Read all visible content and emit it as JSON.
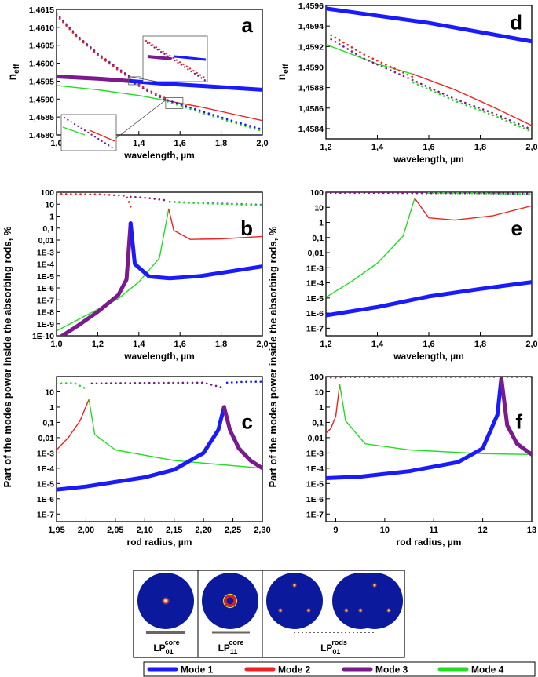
{
  "figure": {
    "shared_ylabel": "Part of the modes power inside the absorbing rods, %",
    "neff_label_main": "n",
    "neff_label_sub": "eff"
  },
  "legend": {
    "entries": [
      {
        "label": "Mode 1",
        "color": "#1a1aff"
      },
      {
        "label": "Mode 2",
        "color": "#ee2222"
      },
      {
        "label": "Mode 3",
        "color": "#7a1a8c"
      },
      {
        "label": "Mode 4",
        "color": "#22dd22"
      }
    ]
  },
  "mode_profiles": {
    "labels": [
      {
        "main": "LP",
        "sub": "01",
        "sup": "core"
      },
      {
        "main": "LP",
        "sub": "11",
        "sup": "core"
      },
      {
        "main": "LP",
        "sub": "01",
        "sup": "rods"
      }
    ],
    "circle_color": "#0b1a9c",
    "spot_color": "#f0d020"
  },
  "chart_data": [
    {
      "id": "a",
      "type": "line",
      "yscale": "linear",
      "xlabel": "wavelength, µm",
      "ylabel": "n_eff",
      "xlim": [
        1.0,
        2.0
      ],
      "ylim": [
        1.458,
        1.4615
      ],
      "xticks": [
        1.0,
        1.2,
        1.4,
        1.6,
        1.8,
        2.0
      ],
      "xtick_labels": [
        "1,0",
        "1,2",
        "1,4",
        "1,6",
        "1,8",
        "2,0"
      ],
      "yticks": [
        1.458,
        1.4585,
        1.459,
        1.4595,
        1.46,
        1.4605,
        1.461,
        1.4615
      ],
      "ytick_labels": [
        "1,4580",
        "1,4585",
        "1,4590",
        "1,4595",
        "1,4600",
        "1,4605",
        "1,4610",
        "1,4615"
      ],
      "series": [
        {
          "name": "Mode 3",
          "style": "thick",
          "x": [
            1.0,
            1.2,
            1.36
          ],
          "y": [
            1.45963,
            1.45957,
            1.4595
          ]
        },
        {
          "name": "Mode 1",
          "style": "thick",
          "x": [
            1.36,
            1.5,
            1.7,
            2.0
          ],
          "y": [
            1.4595,
            1.45944,
            1.45937,
            1.45926
          ]
        },
        {
          "name": "Mode 4",
          "style": "thin",
          "x": [
            1.0,
            1.2,
            1.4,
            1.54
          ],
          "y": [
            1.45938,
            1.45926,
            1.4591,
            1.45895
          ]
        },
        {
          "name": "Mode 2",
          "style": "thin",
          "x": [
            1.54,
            1.7,
            1.85,
            2.0
          ],
          "y": [
            1.45895,
            1.45878,
            1.45859,
            1.4584
          ]
        },
        {
          "name": "Mode 2",
          "style": "dotted",
          "x": [
            1.0,
            1.1,
            1.2,
            1.3,
            1.36
          ],
          "y": [
            1.46134,
            1.46073,
            1.46023,
            1.45981,
            1.45957
          ]
        },
        {
          "name": "Mode 3",
          "style": "dotted",
          "x": [
            1.0,
            1.1,
            1.2,
            1.3,
            1.36
          ],
          "y": [
            1.46138,
            1.46077,
            1.46027,
            1.45985,
            1.45961
          ]
        },
        {
          "name": "Mode 3",
          "style": "dotted",
          "x": [
            1.36,
            1.45,
            1.54
          ],
          "y": [
            1.4595,
            1.4592,
            1.45895
          ]
        },
        {
          "name": "Mode 2",
          "style": "dotted",
          "x": [
            1.36,
            1.45,
            1.54
          ],
          "y": [
            1.45954,
            1.45924,
            1.45899
          ]
        },
        {
          "name": "Mode 4",
          "style": "dotted",
          "x": [
            1.54,
            1.7,
            1.85,
            2.0
          ],
          "y": [
            1.45893,
            1.45863,
            1.45836,
            1.45811
          ]
        },
        {
          "name": "Mode 1",
          "style": "dotted",
          "x": [
            1.54,
            1.7,
            1.85,
            2.0
          ],
          "y": [
            1.45897,
            1.45867,
            1.4584,
            1.45815
          ]
        }
      ]
    },
    {
      "id": "b",
      "type": "line",
      "yscale": "log",
      "xlabel": "wavelength, µm",
      "ylabel": "",
      "xlim": [
        1.0,
        2.0
      ],
      "ylim_exp": [
        -10,
        2
      ],
      "xticks": [
        1.0,
        1.2,
        1.4,
        1.6,
        1.8,
        2.0
      ],
      "xtick_labels": [
        "1,0",
        "1,2",
        "1,4",
        "1,6",
        "1,8",
        "2,0"
      ],
      "yticks_exp": [
        -10,
        -9,
        -8,
        -7,
        -6,
        -5,
        -4,
        -3,
        -2,
        -1,
        0,
        1,
        2
      ],
      "ytick_labels": [
        "1E-10",
        "1E-9",
        "1E-8",
        "1E-7",
        "1E-6",
        "1E-5",
        "1E-4",
        "1E-3",
        "0,01",
        "0,1",
        "1",
        "10",
        "100"
      ],
      "series": [
        {
          "name": "Mode 3",
          "style": "thick",
          "x": [
            1.0,
            1.1,
            1.2,
            1.3,
            1.34,
            1.36
          ],
          "log10": [
            -10.3,
            -9.2,
            -8.0,
            -6.6,
            -5.3,
            -0.6
          ]
        },
        {
          "name": "Mode 1",
          "style": "thick",
          "x": [
            1.36,
            1.38,
            1.45,
            1.55,
            1.7,
            2.0
          ],
          "log10": [
            -0.6,
            -4.0,
            -5.05,
            -5.2,
            -5.0,
            -4.2
          ]
        },
        {
          "name": "Mode 4",
          "style": "thin",
          "x": [
            1.0,
            1.2,
            1.3,
            1.4,
            1.5,
            1.545
          ],
          "log10": [
            -9.6,
            -7.8,
            -6.9,
            -5.5,
            -3.5,
            0.6
          ]
        },
        {
          "name": "Mode 2",
          "style": "thin",
          "x": [
            1.545,
            1.57,
            1.65,
            1.8,
            2.0
          ],
          "log10": [
            0.6,
            -1.2,
            -1.95,
            -1.9,
            -1.7
          ]
        },
        {
          "name": "Mode 2",
          "style": "dotted",
          "x": [
            1.0,
            1.2,
            1.34,
            1.36
          ],
          "log10": [
            1.85,
            1.82,
            1.7,
            0.8
          ]
        },
        {
          "name": "Mode 3",
          "style": "dotted",
          "x": [
            1.36,
            1.45,
            1.54
          ],
          "log10": [
            1.62,
            1.5,
            1.3
          ]
        },
        {
          "name": "Mode 1",
          "style": "dotted",
          "x": [
            1.55,
            1.7,
            2.0
          ],
          "log10": [
            1.2,
            1.1,
            0.95
          ]
        },
        {
          "name": "Mode 4",
          "style": "dotted",
          "x": [
            1.55,
            1.7,
            2.0
          ],
          "log10": [
            1.18,
            1.08,
            0.92
          ]
        }
      ]
    },
    {
      "id": "c",
      "type": "line",
      "yscale": "log",
      "xlabel": "rod radius, µm",
      "ylabel": "",
      "xlim": [
        1.95,
        2.3
      ],
      "ylim_exp": [
        -7.5,
        2
      ],
      "xticks": [
        1.95,
        2.0,
        2.05,
        2.1,
        2.15,
        2.2,
        2.25,
        2.3
      ],
      "xtick_labels": [
        "1,95",
        "2,00",
        "2,05",
        "2,10",
        "2,15",
        "2,20",
        "2,25",
        "2,30"
      ],
      "yticks_exp": [
        -7,
        -6,
        -5,
        -4,
        -3,
        -2,
        -1,
        0,
        1
      ],
      "ytick_labels": [
        "1E-7",
        "1E-6",
        "1E-5",
        "1E-4",
        "1E-3",
        "0,01",
        "0,1",
        "1",
        "10"
      ],
      "series": [
        {
          "name": "Mode 1",
          "style": "thick",
          "x": [
            1.95,
            2.0,
            2.1,
            2.15,
            2.2,
            2.225,
            2.235
          ],
          "log10": [
            -5.4,
            -5.2,
            -4.6,
            -4.1,
            -3.0,
            -1.5,
            0.0
          ]
        },
        {
          "name": "Mode 3",
          "style": "thick",
          "x": [
            2.235,
            2.245,
            2.26,
            2.28,
            2.3
          ],
          "log10": [
            0.0,
            -1.5,
            -2.7,
            -3.5,
            -4.0
          ]
        },
        {
          "name": "Mode 2",
          "style": "thin",
          "x": [
            1.95,
            1.97,
            1.99,
            2.005
          ],
          "log10": [
            -2.8,
            -2.0,
            -0.9,
            0.5
          ]
        },
        {
          "name": "Mode 4",
          "style": "thin",
          "x": [
            2.005,
            2.015,
            2.05,
            2.15,
            2.3
          ],
          "log10": [
            0.5,
            -1.8,
            -2.8,
            -3.5,
            -4.0
          ]
        },
        {
          "name": "Mode 4",
          "style": "dotted",
          "x": [
            1.95,
            1.98,
            2.0
          ],
          "log10": [
            1.55,
            1.58,
            1.2
          ]
        },
        {
          "name": "Mode 3",
          "style": "dotted",
          "x": [
            2.01,
            2.1,
            2.2,
            2.23
          ],
          "log10": [
            1.55,
            1.58,
            1.6,
            1.3
          ]
        },
        {
          "name": "Mode 1",
          "style": "dotted",
          "x": [
            2.24,
            2.27,
            2.3
          ],
          "log10": [
            1.6,
            1.65,
            1.66
          ]
        }
      ]
    },
    {
      "id": "d",
      "type": "line",
      "yscale": "linear",
      "xlabel": "wavelength, µm",
      "ylabel": "n_eff",
      "xlim": [
        1.2,
        2.0
      ],
      "ylim": [
        1.4583,
        1.4596
      ],
      "xticks": [
        1.2,
        1.4,
        1.6,
        1.8,
        2.0
      ],
      "xtick_labels": [
        "1,2",
        "1,4",
        "1,6",
        "1,8",
        "2,0"
      ],
      "yticks": [
        1.4584,
        1.4586,
        1.4588,
        1.459,
        1.4592,
        1.4594,
        1.4596
      ],
      "ytick_labels": [
        "1,4584",
        "1,4586",
        "1,4588",
        "1,4590",
        "1,4592",
        "1,4594",
        "1,4596"
      ],
      "series": [
        {
          "name": "Mode 1",
          "style": "thick",
          "x": [
            1.2,
            1.6,
            2.0
          ],
          "y": [
            1.45957,
            1.45943,
            1.45925
          ]
        },
        {
          "name": "Mode 4",
          "style": "thin",
          "x": [
            1.2,
            1.4,
            1.54
          ],
          "y": [
            1.45922,
            1.45903,
            1.45893
          ]
        },
        {
          "name": "Mode 2",
          "style": "thin",
          "x": [
            1.54,
            1.7,
            1.85,
            2.0
          ],
          "y": [
            1.45893,
            1.45878,
            1.45861,
            1.45843
          ]
        },
        {
          "name": "Mode 2",
          "style": "dotted",
          "x": [
            1.22,
            1.35,
            1.54
          ],
          "y": [
            1.45931,
            1.45912,
            1.4589
          ]
        },
        {
          "name": "Mode 3",
          "style": "dotted",
          "x": [
            1.22,
            1.35,
            1.54,
            1.7,
            1.85,
            2.0
          ],
          "y": [
            1.45927,
            1.45908,
            1.45887,
            1.45869,
            1.45855,
            1.45839
          ]
        },
        {
          "name": "Mode 4",
          "style": "dotted",
          "x": [
            1.54,
            1.7,
            1.85,
            2.0
          ],
          "y": [
            1.45885,
            1.45867,
            1.45853,
            1.45837
          ]
        }
      ]
    },
    {
      "id": "e",
      "type": "line",
      "yscale": "log",
      "xlabel": "wavelength, µm",
      "ylabel": "",
      "xlim": [
        1.2,
        2.0
      ],
      "ylim_exp": [
        -7.5,
        2
      ],
      "xticks": [
        1.2,
        1.4,
        1.6,
        1.8,
        2.0
      ],
      "xtick_labels": [
        "1,2",
        "1,4",
        "1,6",
        "1,8",
        "2,0"
      ],
      "yticks_exp": [
        -7,
        -6,
        -5,
        -4,
        -3,
        -2,
        -1,
        0,
        1,
        2
      ],
      "ytick_labels": [
        "1E-7",
        "1E-6",
        "1E-5",
        "1E-4",
        "1E-3",
        "0,01",
        "0,1",
        "1",
        "10",
        "100"
      ],
      "series": [
        {
          "name": "Mode 1",
          "style": "thick",
          "x": [
            1.2,
            1.4,
            1.6,
            1.8,
            2.0
          ],
          "log10": [
            -6.15,
            -5.6,
            -4.9,
            -4.4,
            -3.95
          ]
        },
        {
          "name": "Mode 4",
          "style": "thin",
          "x": [
            1.2,
            1.3,
            1.4,
            1.5,
            1.545
          ],
          "log10": [
            -4.95,
            -3.9,
            -2.7,
            -0.9,
            1.6
          ]
        },
        {
          "name": "Mode 2",
          "style": "thin",
          "x": [
            1.545,
            1.6,
            1.7,
            1.85,
            2.0
          ],
          "log10": [
            1.6,
            0.3,
            0.15,
            0.45,
            1.1
          ]
        },
        {
          "name": "Mode 2",
          "style": "dotted",
          "x": [
            1.2,
            1.4,
            1.54
          ],
          "log10": [
            1.98,
            1.98,
            1.95
          ]
        },
        {
          "name": "Mode 3",
          "style": "dotted",
          "x": [
            1.2,
            1.4,
            1.6,
            1.8,
            2.0
          ],
          "log10": [
            1.96,
            1.96,
            1.94,
            1.93,
            1.9
          ]
        },
        {
          "name": "Mode 4",
          "style": "dotted",
          "x": [
            1.6,
            1.8,
            2.0
          ],
          "log10": [
            1.96,
            1.93,
            1.86
          ]
        }
      ]
    },
    {
      "id": "f",
      "type": "line",
      "yscale": "log",
      "xlabel": "rod radius, µm",
      "ylabel": "",
      "xlim": [
        8.8,
        13.0
      ],
      "ylim_exp": [
        -7.5,
        2
      ],
      "xticks": [
        9,
        10,
        11,
        12,
        13
      ],
      "xtick_labels": [
        "9",
        "10",
        "11",
        "12",
        "13"
      ],
      "yticks_exp": [
        -7,
        -6,
        -5,
        -4,
        -3,
        -2,
        -1,
        0,
        1,
        2
      ],
      "ytick_labels": [
        "1E-7",
        "1E-6",
        "1E-5",
        "1E-4",
        "1E-3",
        "0,01",
        "0,1",
        "1",
        "10",
        "100"
      ],
      "series": [
        {
          "name": "Mode 1",
          "style": "thick",
          "x": [
            8.8,
            9.5,
            10.5,
            11.5,
            12.0,
            12.3,
            12.38
          ],
          "log10": [
            -4.65,
            -4.55,
            -4.2,
            -3.6,
            -2.7,
            -0.5,
            1.9
          ]
        },
        {
          "name": "Mode 3",
          "style": "thick",
          "x": [
            12.38,
            12.5,
            12.7,
            13.0
          ],
          "log10": [
            1.9,
            -1.2,
            -2.4,
            -3.1
          ]
        },
        {
          "name": "Mode 2",
          "style": "thin",
          "x": [
            8.8,
            8.9,
            9.0,
            9.08
          ],
          "log10": [
            -1.7,
            -1.4,
            -0.6,
            1.5
          ]
        },
        {
          "name": "Mode 4",
          "style": "thin",
          "x": [
            9.08,
            9.2,
            9.6,
            10.5,
            12.0,
            13.0
          ],
          "log10": [
            1.5,
            -0.9,
            -2.4,
            -2.8,
            -3.05,
            -3.1
          ]
        },
        {
          "name": "Mode 2",
          "style": "dotted",
          "x": [
            8.8,
            9.0
          ],
          "log10": [
            1.95,
            1.92
          ]
        },
        {
          "name": "Mode 3",
          "style": "dotted",
          "x": [
            9.1,
            10.5,
            12.3
          ],
          "log10": [
            1.97,
            1.98,
            1.98
          ]
        },
        {
          "name": "Mode 1",
          "style": "dotted",
          "x": [
            12.4,
            13.0
          ],
          "log10": [
            1.98,
            1.98
          ]
        }
      ]
    }
  ]
}
